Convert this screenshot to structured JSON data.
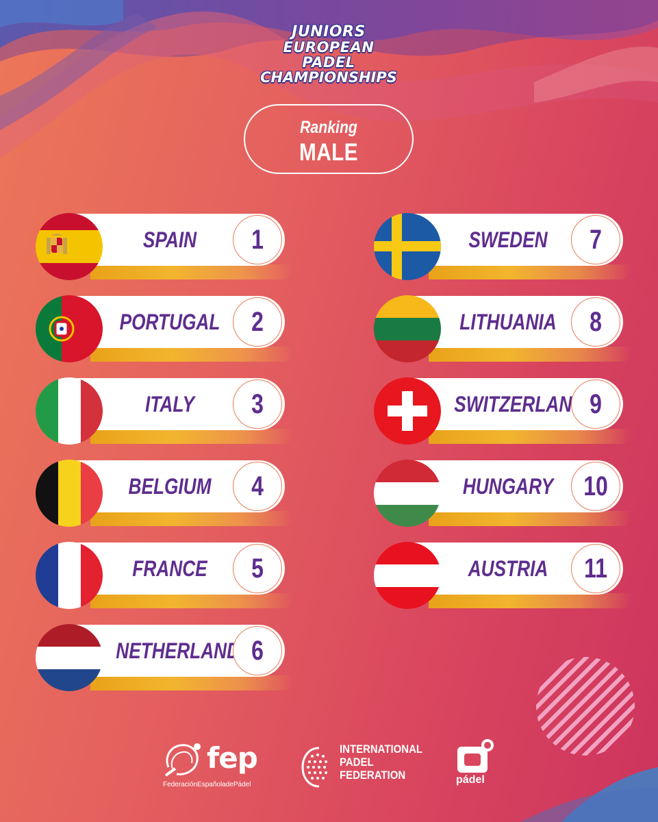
{
  "title": {
    "line1": "JUNIORS",
    "line2": "EUROPEAN",
    "line3": "PADEL",
    "line4": "CHAMPIONSHIPS"
  },
  "ranking": {
    "label": "Ranking",
    "gender": "MALE"
  },
  "left_column": [
    {
      "country": "SPAIN",
      "rank": "1",
      "flag": "spain-flag-icon"
    },
    {
      "country": "PORTUGAL",
      "rank": "2",
      "flag": "portugal-flag-icon"
    },
    {
      "country": "ITALY",
      "rank": "3",
      "flag": "italy-flag-icon"
    },
    {
      "country": "BELGIUM",
      "rank": "4",
      "flag": "belgium-flag-icon"
    },
    {
      "country": "FRANCE",
      "rank": "5",
      "flag": "france-flag-icon"
    },
    {
      "country": "NETHERLANDS",
      "rank": "6",
      "flag": "netherlands-flag-icon"
    }
  ],
  "right_column": [
    {
      "country": "SWEDEN",
      "rank": "7",
      "flag": "sweden-flag-icon"
    },
    {
      "country": "LITHUANIA",
      "rank": "8",
      "flag": "lithuania-flag-icon"
    },
    {
      "country": "SWITZERLAND",
      "rank": "9",
      "flag": "switzerland-flag-icon"
    },
    {
      "country": "HUNGARY",
      "rank": "10",
      "flag": "hungary-flag-icon"
    },
    {
      "country": "AUSTRIA",
      "rank": "11",
      "flag": "austria-flag-icon"
    }
  ],
  "sponsors": {
    "fep": {
      "name": "fep",
      "subtitle": "FederaciónEspañoladePádel"
    },
    "ipf": {
      "line1": "INTERNATIONAL",
      "line2": "PADEL",
      "line3": "FEDERATION"
    },
    "padel": {
      "name": "pádel"
    }
  },
  "colors": {
    "background_start": "#ec7758",
    "background_end": "#cd345e",
    "text_purple": "#5e2d8e",
    "accent_gold": "#f2b52e",
    "circle_border": "#e87c55"
  }
}
